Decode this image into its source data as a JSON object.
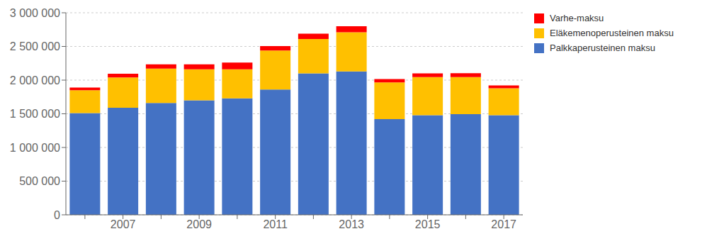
{
  "chart_data": {
    "type": "bar",
    "stacked": true,
    "grid": true,
    "legend": "right",
    "categories": [
      null,
      "2007",
      null,
      "2009",
      null,
      "2011",
      null,
      "2013",
      null,
      "2015",
      null,
      "2017"
    ],
    "series": [
      {
        "name": "Palkkaperusteinen maksu",
        "color": "#4472C4",
        "values": [
          1510000,
          1590000,
          1660000,
          1700000,
          1730000,
          1860000,
          2100000,
          2130000,
          1420000,
          1480000,
          1495000,
          1480000
        ]
      },
      {
        "name": "Eläkemenoperusteinen maksu",
        "color": "#FFC000",
        "values": [
          340000,
          450000,
          510000,
          460000,
          430000,
          580000,
          510000,
          580000,
          545000,
          565000,
          550000,
          400000
        ]
      },
      {
        "name": "Varhe-maksu",
        "color": "#FF0000",
        "values": [
          40000,
          55000,
          65000,
          75000,
          100000,
          65000,
          80000,
          90000,
          50000,
          55000,
          58000,
          42000
        ]
      }
    ],
    "ylim": [
      0,
      3000000
    ],
    "yticks": [
      0,
      {
        "value": 500000,
        "label": "500 000"
      },
      {
        "value": 1000000,
        "label": "1 000 000"
      },
      {
        "value": 1500000,
        "label": "1 500 000"
      },
      {
        "value": 2000000,
        "label": "2 000 000"
      },
      {
        "value": 2500000,
        "label": "2 500 000"
      },
      {
        "value": 3000000,
        "label": "3 000 000"
      }
    ]
  }
}
